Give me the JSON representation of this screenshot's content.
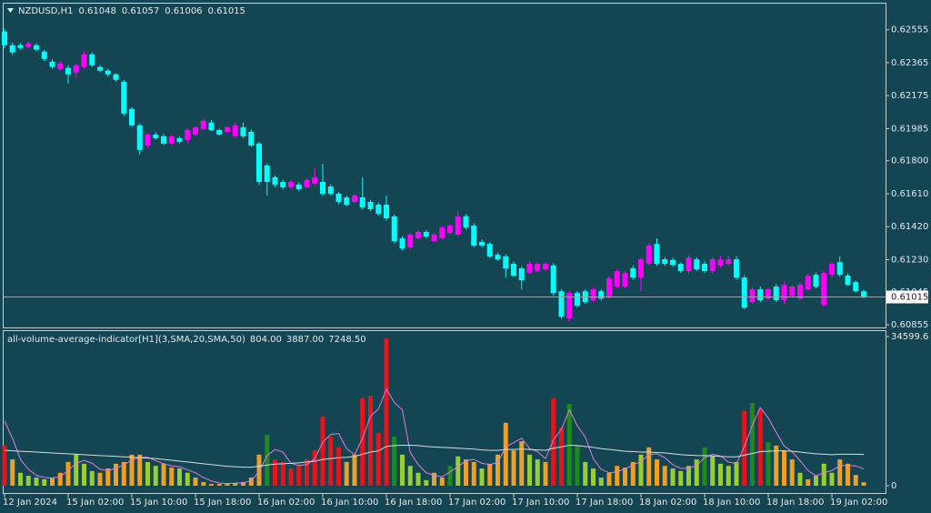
{
  "chart_data": [
    {
      "type": "candlestick",
      "title": "NZDUSD,H1",
      "open": [
        0.62545,
        0.62466,
        0.62466,
        0.62455,
        0.62466,
        0.62429,
        0.62371,
        0.62329,
        0.62335,
        0.62308,
        0.6234,
        0.62413,
        0.6234,
        0.62319,
        0.62298,
        0.62256,
        0.62098,
        0.62004,
        0.61888,
        0.61951,
        0.61941,
        0.61899,
        0.6193,
        0.6192,
        0.61951,
        0.61983,
        0.6202,
        0.61977,
        0.61967,
        0.61941,
        0.61993,
        0.61967,
        0.61899,
        0.61773,
        0.61705,
        0.61678,
        0.61647,
        0.61663,
        0.61647,
        0.61668,
        0.61678,
        0.61652,
        0.6161,
        0.61589,
        0.61563,
        0.61589,
        0.61563,
        0.61547,
        0.61547,
        0.61479,
        0.61353,
        0.613,
        0.61353,
        0.6139,
        0.61337,
        0.61353,
        0.61384,
        0.61374,
        0.61479,
        0.61426,
        0.61332,
        0.61321,
        0.61258,
        0.61248,
        0.61206,
        0.6118,
        0.61153,
        0.61164,
        0.61174,
        0.61196,
        0.61048,
        0.60891,
        0.61038,
        0.61048,
        0.60996,
        0.61048,
        0.61017,
        0.61075,
        0.61075,
        0.6118,
        0.61127,
        0.61206,
        0.61321,
        0.61232,
        0.61228,
        0.61206,
        0.61164,
        0.61232,
        0.61206,
        0.61164,
        0.61196,
        0.61206,
        0.61232,
        0.61127,
        0.60985,
        0.61059,
        0.61006,
        0.61075,
        0.60996,
        0.61022,
        0.61006,
        0.61059,
        0.61143,
        0.6097,
        0.61143,
        0.61216,
        0.61138,
        0.61101,
        0.61048
      ],
      "high": [
        0.6256,
        0.6248,
        0.62476,
        0.6249,
        0.62476,
        0.6244,
        0.62385,
        0.62375,
        0.6235,
        0.6236,
        0.6243,
        0.62425,
        0.6235,
        0.6233,
        0.62305,
        0.62265,
        0.6211,
        0.62015,
        0.6196,
        0.61965,
        0.61955,
        0.6195,
        0.6194,
        0.6199,
        0.62,
        0.62045,
        0.62035,
        0.61985,
        0.62,
        0.6202,
        0.6202,
        0.6198,
        0.6191,
        0.61785,
        0.61715,
        0.6169,
        0.6169,
        0.61675,
        0.617,
        0.61757,
        0.61783,
        0.61665,
        0.6162,
        0.616,
        0.6161,
        0.61705,
        0.61575,
        0.6156,
        0.616,
        0.6149,
        0.61365,
        0.61385,
        0.614,
        0.614,
        0.61385,
        0.61425,
        0.61435,
        0.6151,
        0.6149,
        0.6144,
        0.61345,
        0.6133,
        0.6127,
        0.6126,
        0.6122,
        0.6119,
        0.6122,
        0.61215,
        0.61215,
        0.6121,
        0.6106,
        0.6105,
        0.6105,
        0.6106,
        0.6107,
        0.6106,
        0.61135,
        0.61175,
        0.61165,
        0.61195,
        0.61245,
        0.61325,
        0.61353,
        0.61245,
        0.6124,
        0.61215,
        0.61255,
        0.61245,
        0.6122,
        0.61245,
        0.6125,
        0.61255,
        0.6125,
        0.6114,
        0.6107,
        0.61075,
        0.6107,
        0.6109,
        0.611,
        0.61085,
        0.611,
        0.6115,
        0.61155,
        0.61165,
        0.61215,
        0.6125,
        0.6115,
        0.6111,
        0.61057
      ],
      "low": [
        0.6245,
        0.6241,
        0.6244,
        0.62445,
        0.6243,
        0.62375,
        0.6233,
        0.6232,
        0.62245,
        0.6228,
        0.6233,
        0.6234,
        0.6231,
        0.62285,
        0.62255,
        0.6206,
        0.61995,
        0.61836,
        0.61875,
        0.6192,
        0.6189,
        0.6189,
        0.619,
        0.619,
        0.6194,
        0.61975,
        0.6197,
        0.61945,
        0.6196,
        0.6193,
        0.6193,
        0.6188,
        0.6166,
        0.616,
        0.6165,
        0.61635,
        0.61635,
        0.61625,
        0.6164,
        0.6166,
        0.616,
        0.616,
        0.6155,
        0.61535,
        0.61555,
        0.6152,
        0.6151,
        0.61485,
        0.61455,
        0.61325,
        0.61285,
        0.6129,
        0.61345,
        0.61355,
        0.6133,
        0.61345,
        0.61375,
        0.61365,
        0.61405,
        0.613,
        0.613,
        0.6124,
        0.61225,
        0.61127,
        0.6113,
        0.61059,
        0.61145,
        0.61155,
        0.61165,
        0.61025,
        0.6089,
        0.60875,
        0.60955,
        0.60975,
        0.60985,
        0.60995,
        0.61005,
        0.61065,
        0.61065,
        0.61115,
        0.61048,
        0.61195,
        0.61195,
        0.61195,
        0.6119,
        0.61155,
        0.6115,
        0.61165,
        0.61155,
        0.6115,
        0.61185,
        0.61195,
        0.61115,
        0.60945,
        0.60975,
        0.60985,
        0.60995,
        0.60985,
        0.60975,
        0.6101,
        0.60995,
        0.6105,
        0.61065,
        0.6096,
        0.6113,
        0.6113,
        0.6108,
        0.6104,
        0.61006
      ],
      "close": [
        0.62466,
        0.62424,
        0.6245,
        0.62476,
        0.6244,
        0.62387,
        0.6234,
        0.62361,
        0.62298,
        0.6235,
        0.62413,
        0.6235,
        0.62319,
        0.62298,
        0.62266,
        0.62072,
        0.62004,
        0.61862,
        0.61951,
        0.6193,
        0.61899,
        0.61941,
        0.61909,
        0.61977,
        0.61993,
        0.6203,
        0.61977,
        0.61951,
        0.61993,
        0.62004,
        0.61941,
        0.61888,
        0.61678,
        0.61678,
        0.61663,
        0.61647,
        0.61678,
        0.61636,
        0.61689,
        0.61705,
        0.6161,
        0.6161,
        0.61563,
        0.61547,
        0.616,
        0.61531,
        0.61521,
        0.61495,
        0.61468,
        0.61337,
        0.61295,
        0.61374,
        0.6139,
        0.61363,
        0.61374,
        0.61416,
        0.61426,
        0.61479,
        0.61416,
        0.61311,
        0.61311,
        0.61248,
        0.61232,
        0.6118,
        0.61138,
        0.61111,
        0.61206,
        0.61206,
        0.61206,
        0.61038,
        0.60901,
        0.61038,
        0.60964,
        0.60985,
        0.61059,
        0.61006,
        0.61122,
        0.61164,
        0.61153,
        0.61127,
        0.61232,
        0.61311,
        0.61206,
        0.61206,
        0.612,
        0.61164,
        0.61243,
        0.61174,
        0.61164,
        0.61232,
        0.61232,
        0.61232,
        0.61127,
        0.60954,
        0.61059,
        0.60996,
        0.61059,
        0.60996,
        0.61085,
        0.61075,
        0.61085,
        0.61138,
        0.61075,
        0.61153,
        0.61206,
        0.61143,
        0.61085,
        0.61048,
        0.61015
      ],
      "up_color": "#ff00ff",
      "down_color": "#00ffff",
      "price_line": true,
      "ylim": [
        0.6085,
        0.627
      ],
      "yticks": [
        0.62555,
        0.62365,
        0.62175,
        0.61985,
        {
          "value": 0.618,
          "label": "0.61800"
        },
        {
          "value": 0.6161,
          "label": "0.61610"
        },
        {
          "value": 0.6142,
          "label": "0.61420"
        },
        {
          "value": 0.6123,
          "label": "0.61230"
        },
        0.61045,
        0.60855
      ]
    },
    {
      "type": "bar",
      "title": "all-volume-average-indicator[H1](3,SMA,20,SMA,50)",
      "categories": [
        "12 Jan 2024",
        null,
        null,
        null,
        null,
        null,
        null,
        null,
        "15 Jan 02:00",
        null,
        null,
        null,
        null,
        null,
        null,
        null,
        "15 Jan 10:00",
        null,
        null,
        null,
        null,
        null,
        null,
        null,
        "15 Jan 18:00",
        null,
        null,
        null,
        null,
        null,
        null,
        null,
        "16 Jan 02:00",
        null,
        null,
        null,
        null,
        null,
        null,
        null,
        "16 Jan 10:00",
        null,
        null,
        null,
        null,
        null,
        null,
        null,
        "16 Jan 18:00",
        null,
        null,
        null,
        null,
        null,
        null,
        null,
        "17 Jan 02:00",
        null,
        null,
        null,
        null,
        null,
        null,
        null,
        "17 Jan 10:00",
        null,
        null,
        null,
        null,
        null,
        null,
        null,
        "17 Jan 18:00",
        null,
        null,
        null,
        null,
        null,
        null,
        null,
        "18 Jan 02:00",
        null,
        null,
        null,
        null,
        null,
        null,
        null,
        "18 Jan 10:00",
        null,
        null,
        null,
        null,
        null,
        null,
        null,
        "18 Jan 18:00",
        null,
        null,
        null,
        null,
        null,
        null,
        null,
        "19 Jan 02:00",
        null,
        null,
        null,
        null
      ],
      "values": [
        9300,
        6100,
        3000,
        2300,
        1900,
        1500,
        1900,
        3000,
        5500,
        7200,
        5100,
        3400,
        3000,
        4000,
        5100,
        5500,
        7200,
        7200,
        5500,
        4600,
        5100,
        4200,
        4000,
        3000,
        1900,
        850,
        400,
        400,
        600,
        650,
        850,
        1900,
        7200,
        11800,
        6100,
        5500,
        4000,
        4600,
        6100,
        8200,
        16000,
        11400,
        8900,
        5500,
        7200,
        20300,
        20900,
        12200,
        34200,
        11400,
        7200,
        4600,
        3000,
        1300,
        3000,
        1900,
        4600,
        6800,
        6100,
        5500,
        4000,
        5100,
        7200,
        14600,
        8200,
        10300,
        7200,
        6100,
        5500,
        20300,
        13500,
        19000,
        9300,
        5500,
        4000,
        1900,
        3000,
        4600,
        4200,
        5500,
        7200,
        8900,
        6100,
        4600,
        4000,
        3400,
        4600,
        6100,
        8900,
        6800,
        5100,
        4600,
        5500,
        17300,
        19200,
        17700,
        10100,
        9300,
        8200,
        6100,
        3000,
        1500,
        2300,
        5100,
        3000,
        6100,
        5100,
        2500,
        804
      ],
      "colors": [
        "#e8141c",
        "#f0a020",
        "#9acd32",
        "#9acd32",
        "#9acd32",
        "#9acd32",
        "#f0a020",
        "#f0a020",
        "#f0a020",
        "#9acd32",
        "#9acd32",
        "#9acd32",
        "#f0a020",
        "#f0a020",
        "#f0a020",
        "#f0a020",
        "#f0a020",
        "#f0a020",
        "#9acd32",
        "#9acd32",
        "#f0a020",
        "#f0a020",
        "#9acd32",
        "#9acd32",
        "#f0a020",
        "#f0a020",
        "#f0a020",
        "#f0a020",
        "#f0a020",
        "#9acd32",
        "#f0a020",
        "#f0a020",
        "#f0a020",
        "#1e8a1e",
        "#e8141c",
        "#e8141c",
        "#e8141c",
        "#e8141c",
        "#e8141c",
        "#e8141c",
        "#e8141c",
        "#e8141c",
        "#e8141c",
        "#f0a020",
        "#f0a020",
        "#e8141c",
        "#e8141c",
        "#e8141c",
        "#e8141c",
        "#1e8a1e",
        "#9acd32",
        "#9acd32",
        "#9acd32",
        "#9acd32",
        "#f0a020",
        "#f0a020",
        "#1e8a1e",
        "#9acd32",
        "#f0a020",
        "#f0a020",
        "#9acd32",
        "#f0a020",
        "#f0a020",
        "#f0a020",
        "#f0a020",
        "#f0a020",
        "#9acd32",
        "#9acd32",
        "#f0a020",
        "#e8141c",
        "#e8141c",
        "#1e8a1e",
        "#1e8a1e",
        "#9acd32",
        "#9acd32",
        "#9acd32",
        "#f0a020",
        "#f0a020",
        "#f0a020",
        "#f0a020",
        "#9acd32",
        "#f0a020",
        "#f0a020",
        "#f0a020",
        "#9acd32",
        "#9acd32",
        "#9acd32",
        "#9acd32",
        "#1e8a1e",
        "#9acd32",
        "#9acd32",
        "#9acd32",
        "#9acd32",
        "#e8141c",
        "#1e8a1e",
        "#e8141c",
        "#1e8a1e",
        "#f0a020",
        "#f0a020",
        "#f0a020",
        "#9acd32",
        "#f0a020",
        "#9acd32",
        "#9acd32",
        "#9acd32",
        "#f0a020",
        "#f0a020",
        "#f0a020",
        "#f0a020"
      ],
      "lines": [
        {
          "color": "#e07be0",
          "values": [
            15000,
            11000,
            6100,
            3800,
            2400,
            1900,
            1800,
            2100,
            3500,
            5200,
            5900,
            5200,
            3800,
            3500,
            4000,
            4900,
            5900,
            6600,
            6600,
            5800,
            5100,
            4600,
            4400,
            3700,
            3000,
            1900,
            1100,
            600,
            500,
            600,
            700,
            1100,
            3300,
            7000,
            8400,
            7800,
            5200,
            4700,
            4900,
            6300,
            10100,
            11900,
            12100,
            8600,
            7200,
            11000,
            16100,
            17800,
            22400,
            19300,
            17600,
            7700,
            4900,
            3000,
            2400,
            2100,
            3200,
            4400,
            5800,
            6100,
            5200,
            4900,
            5400,
            9000,
            10000,
            11000,
            8600,
            7900,
            6300,
            10600,
            13100,
            17600,
            13900,
            11300,
            6300,
            3800,
            3000,
            3200,
            3900,
            4800,
            5600,
            7200,
            7400,
            6500,
            4900,
            4000,
            4000,
            4700,
            6500,
            7300,
            6900,
            5500,
            5100,
            9100,
            14000,
            18100,
            15700,
            12400,
            9200,
            7900,
            5800,
            3500,
            2300,
            3000,
            3500,
            4700,
            4700,
            4600,
            3887
          ]
        },
        {
          "color": "#d8dde0",
          "values": [
            8200,
            8100,
            8000,
            7900,
            7800,
            7700,
            7600,
            7500,
            7400,
            7300,
            7200,
            7100,
            7000,
            6900,
            6800,
            6700,
            6600,
            6500,
            6400,
            6300,
            6100,
            5900,
            5700,
            5500,
            5300,
            5100,
            4900,
            4700,
            4500,
            4400,
            4300,
            4300,
            4500,
            4800,
            5000,
            5100,
            5200,
            5300,
            5500,
            5700,
            6100,
            6300,
            6500,
            6600,
            6800,
            7300,
            7800,
            8100,
            9100,
            9300,
            9400,
            9400,
            9300,
            9100,
            9000,
            8900,
            8800,
            8700,
            8600,
            8500,
            8300,
            8200,
            8200,
            8400,
            8400,
            8500,
            8400,
            8300,
            8200,
            8700,
            9000,
            9400,
            9300,
            9100,
            8900,
            8600,
            8400,
            8200,
            8000,
            7900,
            7800,
            7800,
            7700,
            7600,
            7400,
            7200,
            7100,
            7000,
            7000,
            6900,
            6800,
            6700,
            6700,
            7100,
            7500,
            7900,
            8000,
            8100,
            8100,
            8000,
            7800,
            7600,
            7400,
            7300,
            7200,
            7300,
            7300,
            7300,
            7248.5
          ]
        }
      ],
      "legend_values": [
        {
          "value": 804,
          "label": "804.00"
        },
        {
          "value": 3887,
          "label": "3887.00"
        },
        {
          "value": 7248.5,
          "label": "7248.50"
        }
      ],
      "ylim": [
        0,
        34599.6
      ],
      "yticks": [
        34599.6,
        0
      ]
    }
  ]
}
